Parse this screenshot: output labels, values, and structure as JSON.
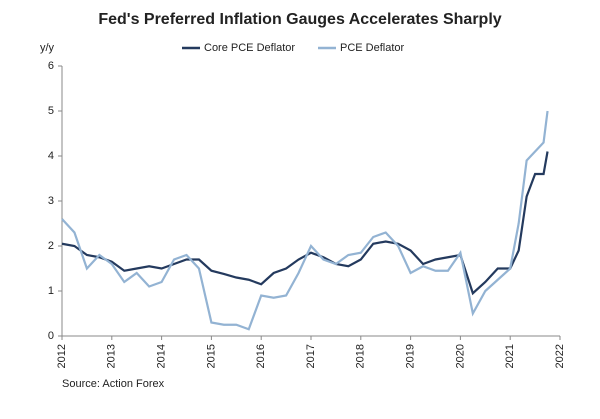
{
  "chart_data": {
    "type": "line",
    "title": "Fed's Preferred  Inflation Gauges Accelerates  Sharply",
    "y_label": "y/y",
    "source": "Source: Action Forex",
    "x": [
      2012.0,
      2012.25,
      2012.5,
      2012.75,
      2013.0,
      2013.25,
      2013.5,
      2013.75,
      2014.0,
      2014.25,
      2014.5,
      2014.75,
      2015.0,
      2015.25,
      2015.5,
      2015.75,
      2016.0,
      2016.25,
      2016.5,
      2016.75,
      2017.0,
      2017.25,
      2017.5,
      2017.75,
      2018.0,
      2018.25,
      2018.5,
      2018.75,
      2019.0,
      2019.25,
      2019.5,
      2019.75,
      2020.0,
      2020.25,
      2020.5,
      2020.75,
      2021.0,
      2021.17,
      2021.33,
      2021.5,
      2021.67,
      2021.75
    ],
    "series": [
      {
        "name": "Core PCE Deflator",
        "color": "#243a5e",
        "values": [
          2.05,
          2.0,
          1.8,
          1.75,
          1.65,
          1.45,
          1.5,
          1.55,
          1.5,
          1.6,
          1.7,
          1.7,
          1.45,
          1.38,
          1.3,
          1.25,
          1.15,
          1.4,
          1.5,
          1.7,
          1.85,
          1.75,
          1.6,
          1.55,
          1.7,
          2.05,
          2.1,
          2.05,
          1.9,
          1.6,
          1.7,
          1.75,
          1.8,
          0.95,
          1.2,
          1.5,
          1.5,
          1.9,
          3.1,
          3.6,
          3.6,
          4.1
        ]
      },
      {
        "name": "PCE Deflator",
        "color": "#93b3d3",
        "values": [
          2.6,
          2.3,
          1.5,
          1.8,
          1.6,
          1.2,
          1.4,
          1.1,
          1.2,
          1.7,
          1.8,
          1.5,
          0.3,
          0.25,
          0.25,
          0.15,
          0.9,
          0.85,
          0.9,
          1.4,
          2.0,
          1.7,
          1.6,
          1.8,
          1.85,
          2.2,
          2.3,
          2.0,
          1.4,
          1.55,
          1.45,
          1.45,
          1.85,
          0.5,
          1.0,
          1.25,
          1.5,
          2.5,
          3.9,
          4.1,
          4.3,
          5.0
        ]
      }
    ],
    "xlim": [
      2012,
      2022
    ],
    "xticks": [
      2012,
      2013,
      2014,
      2015,
      2016,
      2017,
      2018,
      2019,
      2020,
      2021,
      2022
    ],
    "ylim": [
      0,
      6
    ],
    "yticks": [
      0,
      1,
      2,
      3,
      4,
      5,
      6
    ],
    "legend": "top"
  }
}
